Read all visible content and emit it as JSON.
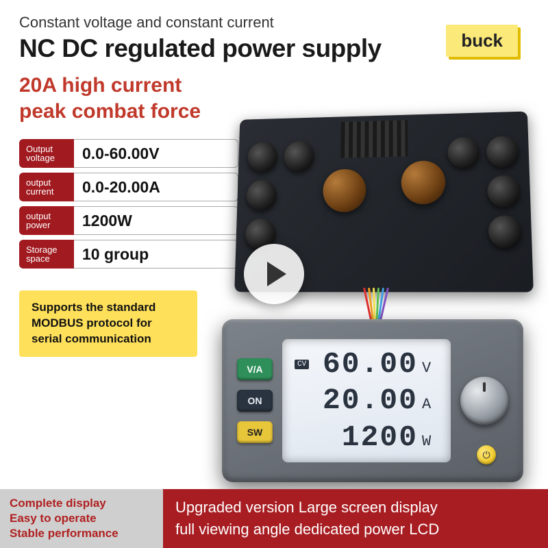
{
  "header": {
    "subtitle": "Constant voltage and constant current",
    "title": "NC DC regulated power supply"
  },
  "badge": "buck",
  "highlight": {
    "line1": "20A high current",
    "line2": "peak combat force",
    "color": "#c0392b"
  },
  "specs": [
    {
      "label_top": "Output",
      "label_bottom": "voltage",
      "value": "0.0-60.00V"
    },
    {
      "label_top": "output",
      "label_bottom": "current",
      "value": "0.0-20.00A"
    },
    {
      "label_top": "output",
      "label_bottom": "power",
      "value": "1200W"
    },
    {
      "label_top": "Storage",
      "label_bottom": "space",
      "value": "10 group"
    }
  ],
  "support_box": "Supports the standard MODBUS protocol for serial communication",
  "panel": {
    "buttons": [
      {
        "label": "V/A",
        "bg": "#2f8f5a",
        "fg": "#ffffff"
      },
      {
        "label": "ON",
        "bg": "#2a3340",
        "fg": "#e8eef6"
      },
      {
        "label": "SW",
        "bg": "#e8c63a",
        "fg": "#222222"
      }
    ],
    "readings": [
      {
        "tag": "CV",
        "value": "60.00",
        "unit": "V"
      },
      {
        "tag": "",
        "value": "20.00",
        "unit": "A"
      },
      {
        "tag": "",
        "value": "1200",
        "unit": "W"
      }
    ]
  },
  "footer": {
    "left": [
      "Complete display",
      "Easy to operate",
      "Stable performance"
    ],
    "right_line1": "Upgraded version Large screen display",
    "right_line2": "full viewing angle dedicated power LCD"
  },
  "colors": {
    "spec_label_bg": "#a11a1f",
    "badge_bg": "#fbe97a",
    "support_bg": "#ffe05a",
    "footer_right_bg": "#a81d22",
    "footer_left_bg": "#cfcfcf",
    "footer_left_text": "#b02020"
  },
  "wires": [
    "#e03030",
    "#f0a020",
    "#f0e050",
    "#60c050",
    "#40a0e0",
    "#8050c0"
  ]
}
